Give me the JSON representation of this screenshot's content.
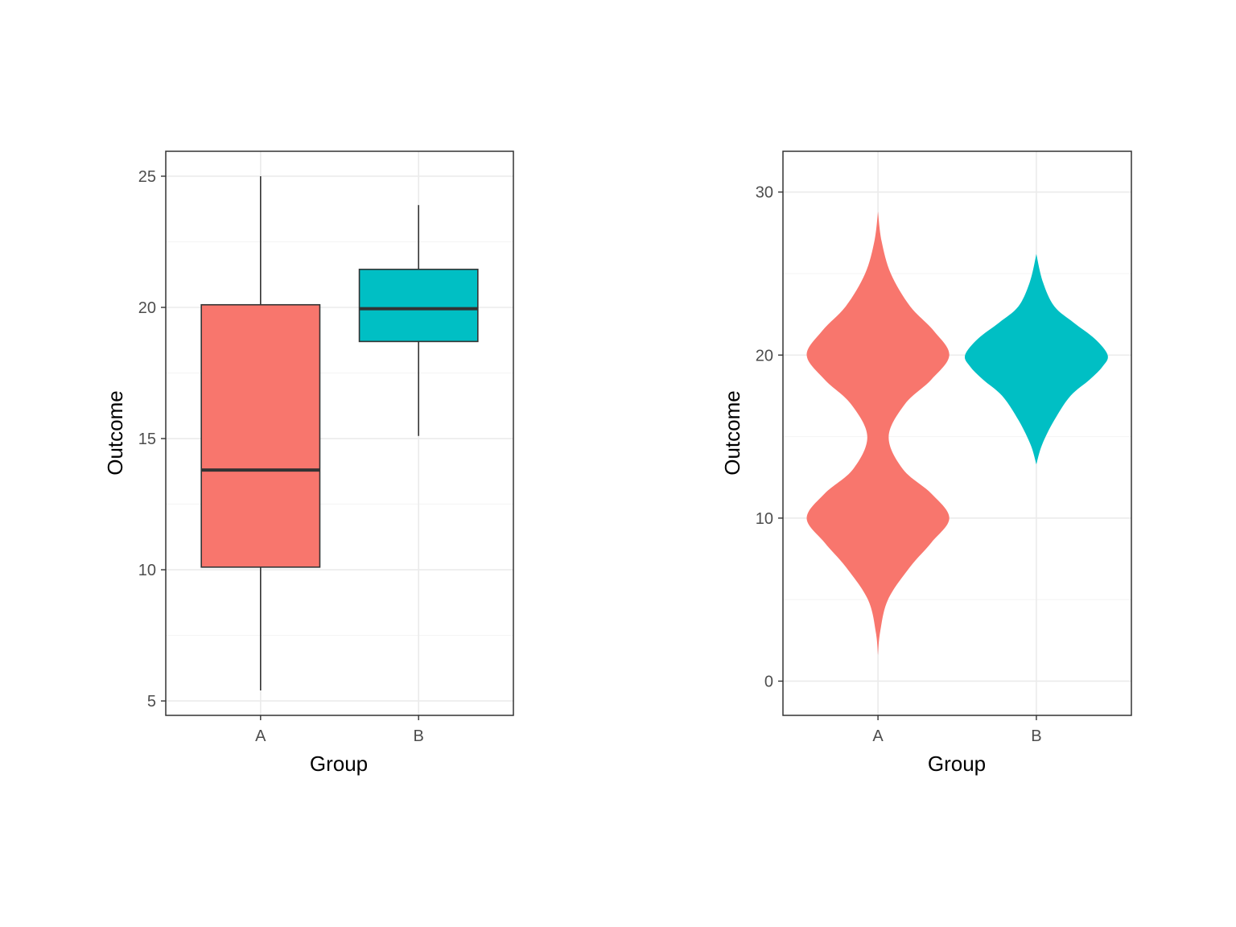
{
  "colors": {
    "group_a": "#F8766D",
    "group_b": "#00BFC4",
    "grid_major": "#EBEBEB",
    "grid_minor": "#F5F5F5",
    "panel_border": "#333333",
    "box_outline": "#333333",
    "tick_text": "#4D4D4D"
  },
  "chart_data": [
    {
      "type": "boxplot",
      "xlabel": "Group",
      "ylabel": "Outcome",
      "ylim": [
        4.45,
        25.95
      ],
      "yticks": [
        5,
        10,
        15,
        20,
        25
      ],
      "categories": [
        "A",
        "B"
      ],
      "grid": true,
      "boxes": [
        {
          "group": "A",
          "color": "#F8766D",
          "whisker_low": 5.4,
          "q1": 10.1,
          "median": 13.8,
          "q3": 20.1,
          "whisker_high": 25.0
        },
        {
          "group": "B",
          "color": "#00BFC4",
          "whisker_low": 15.1,
          "q1": 18.7,
          "median": 19.95,
          "q3": 21.45,
          "whisker_high": 23.9
        }
      ]
    },
    {
      "type": "violin",
      "xlabel": "Group",
      "ylabel": "Outcome",
      "ylim": [
        -2.1,
        32.5
      ],
      "yticks": [
        0,
        10,
        20,
        30
      ],
      "categories": [
        "A",
        "B"
      ],
      "grid": true,
      "violins": [
        {
          "group": "A",
          "color": "#F8766D",
          "y_range": [
            1.6,
            28.8
          ],
          "density_profile": [
            [
              1.6,
              0.0
            ],
            [
              3.0,
              0.03
            ],
            [
              5.0,
              0.14
            ],
            [
              7.0,
              0.45
            ],
            [
              8.5,
              0.75
            ],
            [
              10.0,
              1.0
            ],
            [
              11.5,
              0.75
            ],
            [
              13.0,
              0.35
            ],
            [
              15.0,
              0.15
            ],
            [
              17.0,
              0.38
            ],
            [
              18.5,
              0.75
            ],
            [
              20.0,
              1.0
            ],
            [
              21.5,
              0.78
            ],
            [
              23.0,
              0.45
            ],
            [
              25.0,
              0.18
            ],
            [
              27.0,
              0.05
            ],
            [
              28.8,
              0.0
            ]
          ]
        },
        {
          "group": "B",
          "color": "#00BFC4",
          "y_range": [
            13.3,
            26.2
          ],
          "density_profile": [
            [
              13.3,
              0.0
            ],
            [
              14.5,
              0.08
            ],
            [
              16.0,
              0.25
            ],
            [
              17.5,
              0.48
            ],
            [
              18.5,
              0.75
            ],
            [
              19.3,
              0.93
            ],
            [
              20.0,
              1.0
            ],
            [
              21.0,
              0.82
            ],
            [
              22.0,
              0.52
            ],
            [
              23.0,
              0.25
            ],
            [
              24.5,
              0.09
            ],
            [
              26.2,
              0.0
            ]
          ]
        }
      ]
    }
  ]
}
